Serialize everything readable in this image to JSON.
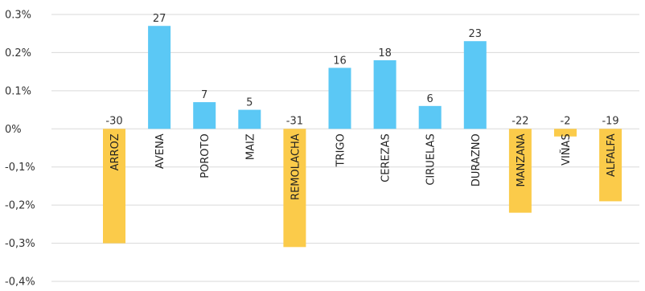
{
  "chart_data": {
    "type": "bar",
    "categories": [
      "ARROZ",
      "AVENA",
      "POROTO",
      "MAIZ",
      "REMOLACHA",
      "TRIGO",
      "CEREZAS",
      "CIRUELAS",
      "DURAZNO",
      "MANZANA",
      "VIÑAS",
      "ALFALFA"
    ],
    "values": [
      -0.3,
      0.27,
      0.07,
      0.05,
      -0.31,
      0.16,
      0.18,
      0.06,
      0.23,
      -0.22,
      -0.02,
      -0.19
    ],
    "data_labels": [
      "-30",
      "27",
      "7",
      "5",
      "-31",
      "16",
      "18",
      "6",
      "23",
      "-22",
      "-2",
      "-19"
    ],
    "y_ticks": [
      0.3,
      0.2,
      0.1,
      0,
      -0.1,
      -0.2,
      -0.3,
      -0.4
    ],
    "y_tick_labels": [
      "0.3%",
      "0.2%",
      "0.1%",
      "0%",
      "-0,1%",
      "-0,2%",
      "-0,3%",
      "-0,4%"
    ],
    "ylim": [
      -0.4,
      0.3
    ],
    "grid": true,
    "colors": {
      "positive": "#5BC8F5",
      "negative": "#FBCB4A",
      "grid": "#d9d9d9"
    },
    "title": "",
    "xlabel": "",
    "ylabel": ""
  }
}
